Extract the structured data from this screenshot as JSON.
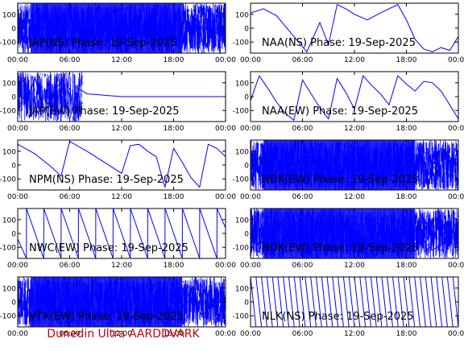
{
  "footer": {
    "text": "Dunedin Ultra AARDDVARK",
    "color": "#cc0000"
  },
  "colors": {
    "trace": "#0000ff",
    "axis": "#000000",
    "background": "#ffffff"
  },
  "chart_data": [
    {
      "type": "line",
      "title": "JAP(NS) Phase: 19-Sep-2025",
      "xticks": [
        "00:00",
        "06:00",
        "12:00",
        "18:00",
        "00:00"
      ],
      "xlim": [
        0,
        24
      ],
      "ylim": [
        -180,
        180
      ],
      "yticks": [
        -100,
        0,
        100
      ],
      "pattern": "saturated",
      "series": [
        {
          "x": [
            0,
            1,
            2,
            3,
            4,
            5,
            6,
            7,
            24
          ],
          "y": [
            50,
            -120,
            120,
            -60,
            40,
            -140,
            80,
            0,
            0
          ]
        }
      ]
    },
    {
      "type": "line",
      "title": "NAA(NS) Phase: 19-Sep-2025",
      "xticks": [
        "00:00",
        "06:00",
        "12:00",
        "18:00",
        "00:00"
      ],
      "xlim": [
        0,
        24
      ],
      "ylim": [
        -180,
        180
      ],
      "yticks": [
        -100,
        0,
        100
      ],
      "pattern": "wrap",
      "series": [
        {
          "x": [
            0,
            1.5,
            3,
            5,
            6.5,
            8,
            9,
            10,
            11,
            12,
            13.5,
            15,
            17,
            18,
            19,
            20,
            21,
            22,
            23,
            24
          ],
          "y": [
            110,
            140,
            90,
            -60,
            -170,
            40,
            -120,
            170,
            140,
            100,
            60,
            110,
            170,
            60,
            -80,
            -150,
            -170,
            -140,
            -160,
            -60
          ]
        }
      ]
    },
    {
      "type": "line",
      "title": "JAP(EW) Phase: 19-Sep-2025",
      "xticks": [
        "00:00",
        "06:00",
        "12:00",
        "18:00",
        "00:00"
      ],
      "xlim": [
        0,
        24
      ],
      "ylim": [
        -180,
        180
      ],
      "yticks": [
        -100,
        0,
        100
      ],
      "pattern": "partial-noise",
      "series": [
        {
          "x": [
            0,
            1,
            2,
            3,
            4,
            5,
            6,
            7,
            8,
            12,
            18,
            24
          ],
          "y": [
            80,
            -60,
            140,
            -120,
            30,
            100,
            -160,
            60,
            20,
            0,
            0,
            0
          ]
        }
      ]
    },
    {
      "type": "line",
      "title": "NAA(EW) Phase: 19-Sep-2025",
      "xticks": [
        "00:00",
        "06:00",
        "12:00",
        "18:00",
        "00:00"
      ],
      "xlim": [
        0,
        24
      ],
      "ylim": [
        -180,
        180
      ],
      "yticks": [
        -100,
        0,
        100
      ],
      "pattern": "wrap",
      "series": [
        {
          "x": [
            0,
            1,
            2,
            3,
            4,
            5,
            6,
            7,
            8,
            9,
            10,
            11,
            12,
            13,
            14,
            15,
            16,
            17,
            18,
            19,
            20,
            21,
            22,
            23,
            24
          ],
          "y": [
            -30,
            150,
            60,
            -40,
            -120,
            -170,
            120,
            20,
            -80,
            -160,
            130,
            30,
            -90,
            150,
            80,
            20,
            -60,
            150,
            90,
            40,
            110,
            100,
            40,
            -60,
            -160
          ]
        }
      ]
    },
    {
      "type": "line",
      "title": "NPM(NS) Phase: 19-Sep-2025",
      "xticks": [
        "00:00",
        "06:00",
        "12:00",
        "18:00",
        "00:00"
      ],
      "xlim": [
        0,
        24
      ],
      "ylim": [
        -180,
        180
      ],
      "yticks": [
        -100,
        0,
        100
      ],
      "pattern": "wrap",
      "series": [
        {
          "x": [
            0,
            2,
            4,
            5,
            6,
            8,
            10,
            12,
            13,
            14,
            15,
            16,
            17,
            18,
            19,
            20,
            21,
            22,
            23,
            24
          ],
          "y": [
            150,
            80,
            -20,
            -80,
            170,
            100,
            20,
            -60,
            140,
            150,
            100,
            60,
            -160,
            120,
            20,
            -90,
            -160,
            150,
            120,
            60
          ]
        }
      ]
    },
    {
      "type": "line",
      "title": "NDK(EW) Phase: 19-Sep-2025",
      "xticks": [
        "00:00",
        "06:00",
        "12:00",
        "18:00",
        "00:00"
      ],
      "xlim": [
        0,
        24
      ],
      "ylim": [
        -180,
        180
      ],
      "yticks": [
        -100,
        0,
        100
      ],
      "pattern": "saturated",
      "series": [
        {
          "x": [
            0,
            2,
            4,
            6,
            8,
            12,
            18,
            20,
            22,
            24
          ],
          "y": [
            0,
            100,
            -100,
            60,
            -80,
            0,
            0,
            -140,
            120,
            0
          ]
        }
      ]
    },
    {
      "type": "line",
      "title": "NWC(EW) Phase: 19-Sep-2025",
      "xticks": [
        "00:00",
        "06:00",
        "12:00",
        "18:00",
        "00:00"
      ],
      "xlim": [
        0,
        24
      ],
      "ylim": [
        -180,
        180
      ],
      "yticks": [
        -100,
        0,
        100
      ],
      "pattern": "sawtooth",
      "series": [
        {
          "x": [
            0,
            1,
            1.01,
            3,
            3.01,
            5,
            5.01,
            7,
            7.01,
            9,
            9.01,
            11,
            11.01,
            13,
            13.01,
            15,
            15.01,
            17,
            17.01,
            19,
            19.01,
            21,
            21.01,
            23,
            23.01,
            24
          ],
          "y": [
            -40,
            -180,
            180,
            -180,
            180,
            -180,
            180,
            -180,
            180,
            -180,
            180,
            -180,
            180,
            -180,
            180,
            -180,
            180,
            -180,
            180,
            -180,
            180,
            -180,
            180,
            -180,
            180,
            40
          ]
        }
      ]
    },
    {
      "type": "line",
      "title": "NDK(EW) Phase: 19-Sep-2025",
      "xticks": [
        "00:00",
        "06:00",
        "12:00",
        "18:00",
        "00:00"
      ],
      "xlim": [
        0,
        24
      ],
      "ylim": [
        -180,
        180
      ],
      "yticks": [
        -100,
        0,
        100
      ],
      "pattern": "saturated",
      "series": [
        {
          "x": [
            0,
            3,
            6,
            9,
            12,
            15,
            18,
            21,
            24
          ],
          "y": [
            0,
            80,
            -80,
            60,
            0,
            -60,
            80,
            -120,
            0
          ]
        }
      ]
    },
    {
      "type": "line",
      "title": "VTX(EW) Phase: 19-Sep-2025",
      "xticks": [
        "00:00",
        "06:00",
        "12:00",
        "18:00",
        "00:00"
      ],
      "xlim": [
        0,
        24
      ],
      "ylim": [
        -180,
        180
      ],
      "yticks": [
        -100,
        0,
        100
      ],
      "pattern": "saturated",
      "series": [
        {
          "x": [
            0,
            6,
            12,
            18,
            24
          ],
          "y": [
            0,
            0,
            0,
            0,
            0
          ]
        }
      ]
    },
    {
      "type": "line",
      "title": "NLK(NS) Phase: 19-Sep-2025",
      "xticks": [
        "00:00",
        "06:00",
        "12:00",
        "18:00",
        "00:00"
      ],
      "xlim": [
        0,
        24
      ],
      "ylim": [
        -180,
        180
      ],
      "yticks": [
        -100,
        0,
        100
      ],
      "pattern": "dense-sawtooth",
      "series": [
        {
          "x": [
            0,
            24
          ],
          "y": [
            -180,
            180
          ]
        }
      ]
    }
  ]
}
